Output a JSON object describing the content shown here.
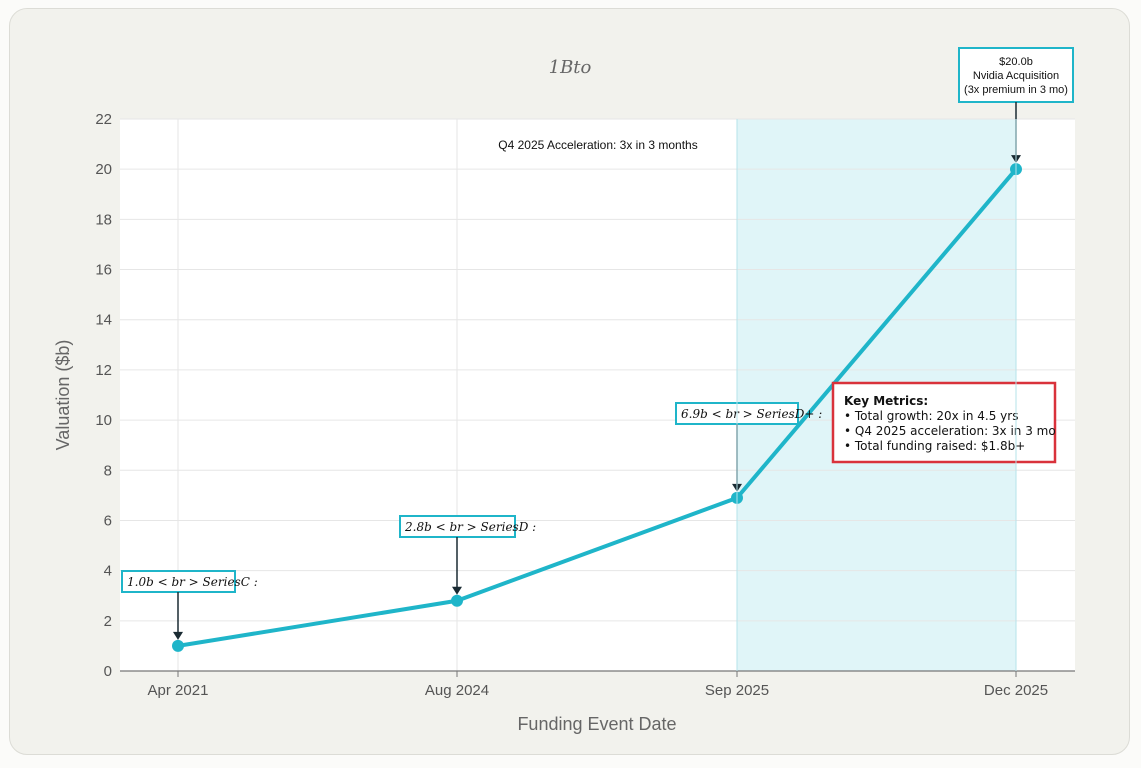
{
  "chart_data": {
    "type": "line",
    "title": "1Bto",
    "xlabel": "Funding Event Date",
    "ylabel": "Valuation ($b)",
    "categories": [
      "Apr 2021",
      "Aug 2024",
      "Sep 2025",
      "Dec 2025"
    ],
    "values": [
      1.0,
      2.8,
      6.9,
      20.0
    ],
    "ylim": [
      0,
      22
    ],
    "yticks": [
      0,
      2,
      4,
      6,
      8,
      10,
      12,
      14,
      16,
      18,
      20,
      22
    ],
    "grid": true,
    "line_color": "#1fb5c9",
    "highlight_band": {
      "from_category": "Sep 2025",
      "to_category": "Dec 2025",
      "color": "#e0f5f8",
      "label": "Q4 2025 Acceleration: 3x in 3 months"
    },
    "annotations": [
      {
        "category": "Apr 2021",
        "text": "1.0b < br > SeriesC :"
      },
      {
        "category": "Aug 2024",
        "text": "2.8b < br > SeriesD :"
      },
      {
        "category": "Sep 2025",
        "text": "6.9b < br > SeriesD+ :"
      },
      {
        "category": "Dec 2025",
        "lines": [
          "$20.0b",
          "Nvidia Acquisition",
          "(3x premium in 3 mo)"
        ]
      }
    ],
    "metrics_box": {
      "title": "Key Metrics:",
      "lines": [
        "• Total growth: 20x in 4.5 yrs",
        "• Q4 2025 acceleration: 3x in 3 mo",
        "• Total funding raised: $1.8b+"
      ],
      "border_color": "#d9323b"
    }
  }
}
